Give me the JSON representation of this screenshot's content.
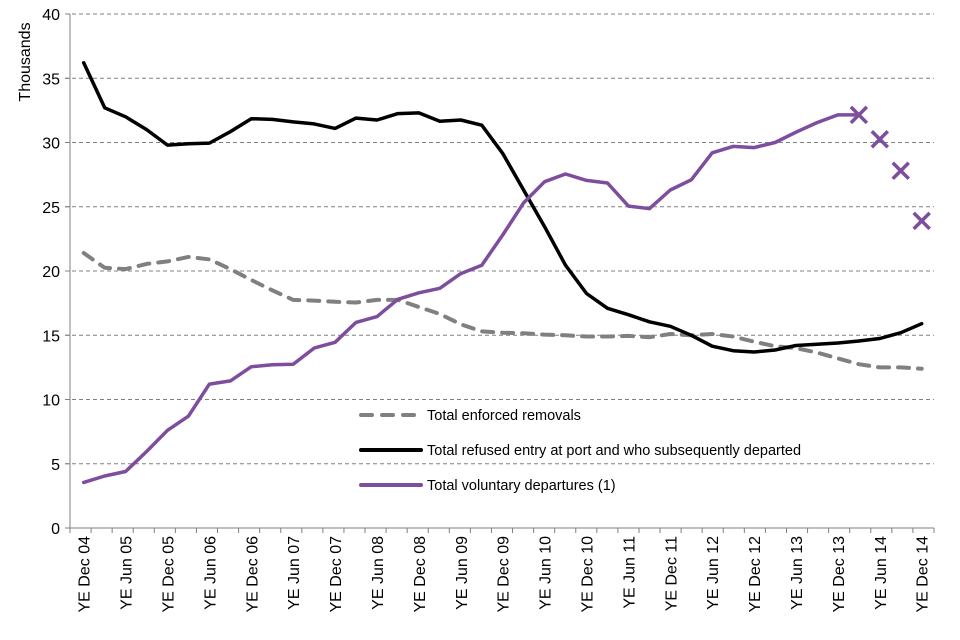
{
  "chart_data": {
    "type": "line",
    "title": "",
    "xlabel": "",
    "ylabel": "Thousands",
    "ylim": [
      0,
      40
    ],
    "yticks": [
      0,
      5,
      10,
      15,
      20,
      25,
      30,
      35,
      40
    ],
    "grid": true,
    "legend_position": "bottom-center",
    "x": [
      "YE Dec 04",
      "YE Mar 05",
      "YE Jun 05",
      "YE Sep 05",
      "YE Dec 05",
      "YE Mar 06",
      "YE Jun 06",
      "YE Sep 06",
      "YE Dec 06",
      "YE Mar 07",
      "YE Jun 07",
      "YE Sep 07",
      "YE Dec 07",
      "YE Mar 08",
      "YE Jun 08",
      "YE Sep 08",
      "YE Dec 08",
      "YE Mar 09",
      "YE Jun 09",
      "YE Sep 09",
      "YE Dec 09",
      "YE Mar 10",
      "YE Jun 10",
      "YE Sep 10",
      "YE Dec 10",
      "YE Mar 11",
      "YE Jun 11",
      "YE Sep 11",
      "YE Dec 11",
      "YE Mar 12",
      "YE Jun 12",
      "YE Sep 12",
      "YE Dec 12",
      "YE Mar 13",
      "YE Jun 13",
      "YE Sep 13",
      "YE Dec 13",
      "YE Mar 14",
      "YE Jun 14",
      "YE Sep 14",
      "YE Dec 14"
    ],
    "xtick_labels": [
      "YE Dec 04",
      "YE Jun 05",
      "YE Dec 05",
      "YE Jun 06",
      "YE Dec 06",
      "YE Jun 07",
      "YE Dec 07",
      "YE Jun 08",
      "YE Dec 08",
      "YE Jun 09",
      "YE Dec 09",
      "YE Jun 10",
      "YE Dec 10",
      "YE Jun 11",
      "YE Dec 11",
      "YE Jun 12",
      "YE Dec 12",
      "YE Jun 13",
      "YE Dec 13",
      "YE Jun 14",
      "YE Dec 14"
    ],
    "series": [
      {
        "name": "Total enforced removals",
        "color": "#808080",
        "style": "dashed",
        "values": [
          21.4,
          20.25,
          20.15,
          20.55,
          20.75,
          21.1,
          20.9,
          20.15,
          19.3,
          18.5,
          17.75,
          17.7,
          17.6,
          17.55,
          17.75,
          17.75,
          17.2,
          16.65,
          15.85,
          15.3,
          15.2,
          15.15,
          15.05,
          15.0,
          14.9,
          14.9,
          14.95,
          14.85,
          15.1,
          15.0,
          15.1,
          14.9,
          14.5,
          14.15,
          14.0,
          13.65,
          13.2,
          12.75,
          12.5,
          12.5,
          12.4
        ]
      },
      {
        "name": "Total refused entry at port and who subsequently departed",
        "color": "#000000",
        "style": "solid",
        "values": [
          36.2,
          32.7,
          32.0,
          31.0,
          29.8,
          29.9,
          29.95,
          30.85,
          31.85,
          31.8,
          31.6,
          31.45,
          31.1,
          31.9,
          31.75,
          32.25,
          32.3,
          31.65,
          31.75,
          31.35,
          29.15,
          26.3,
          23.45,
          20.45,
          18.25,
          17.1,
          16.6,
          16.05,
          15.7,
          15.0,
          14.15,
          13.8,
          13.7,
          13.85,
          14.2,
          14.3,
          14.4,
          14.55,
          14.75,
          15.2,
          15.9
        ]
      },
      {
        "name": "Total voluntary departures (1)",
        "color": "#7e4e9e",
        "style": "solid",
        "values": [
          3.55,
          4.05,
          4.4,
          5.95,
          7.6,
          8.7,
          11.2,
          11.45,
          12.55,
          12.7,
          12.75,
          14.0,
          14.45,
          16.0,
          16.45,
          17.8,
          18.3,
          18.65,
          19.8,
          20.45,
          22.8,
          25.3,
          26.95,
          27.55,
          27.05,
          26.85,
          25.05,
          24.85,
          26.3,
          27.1,
          29.2,
          29.7,
          29.6,
          30.0,
          30.8,
          31.55,
          32.15,
          32.15,
          null,
          null,
          null
        ],
        "markers": {
          "symbol": "x",
          "x_index": [
            37,
            38,
            39,
            40
          ],
          "values": [
            32.15,
            30.25,
            27.8,
            23.9
          ]
        }
      }
    ]
  }
}
